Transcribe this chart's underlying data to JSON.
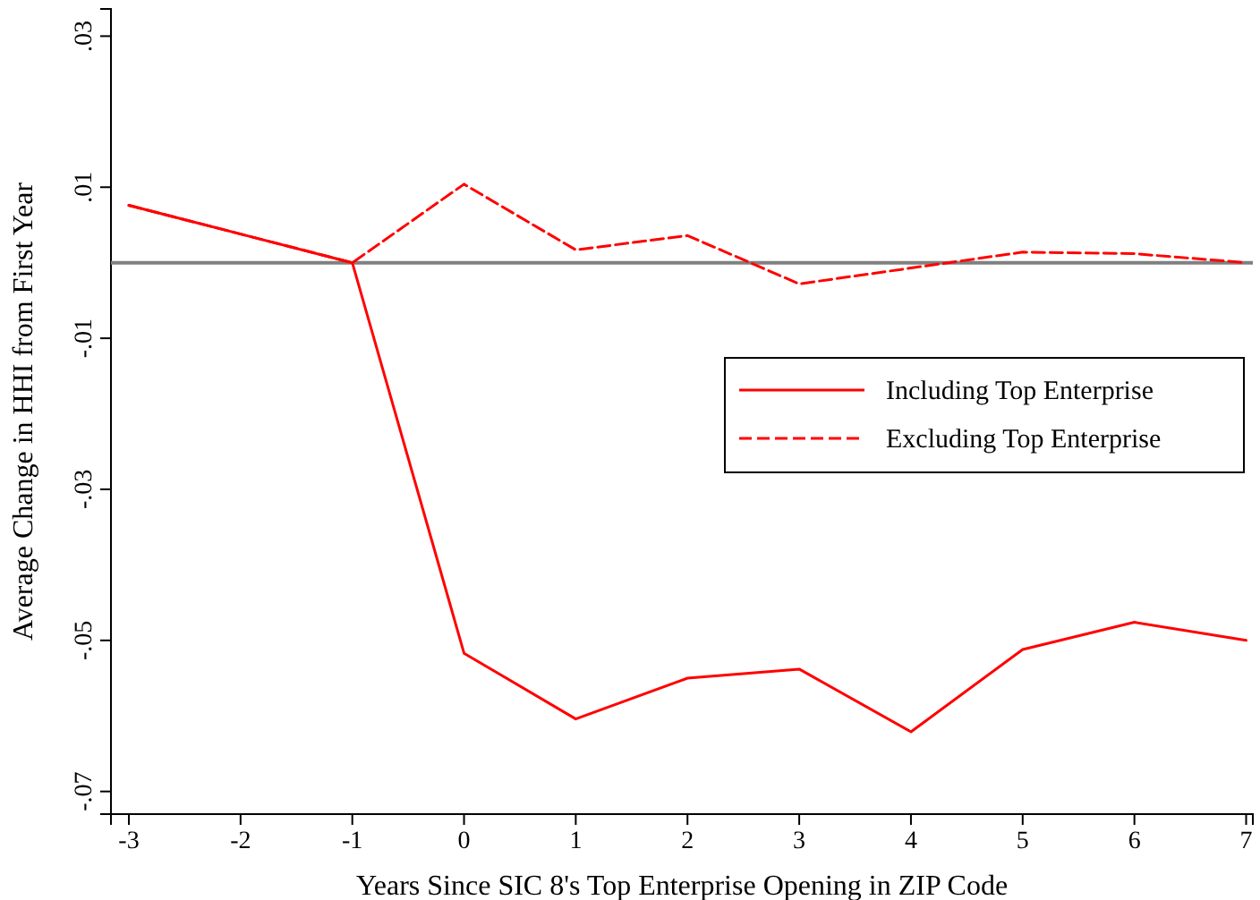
{
  "chart_data": {
    "type": "line",
    "xlabel": "Years Since SIC 8's Top Enterprise Opening in ZIP Code",
    "ylabel": "Average Change in HHI from First Year",
    "x": [
      -3,
      -2,
      -1,
      0,
      1,
      2,
      3,
      4,
      5,
      6,
      7
    ],
    "series": [
      {
        "name": "Including Top Enterprise",
        "color": "#ff0000",
        "line_style": "solid",
        "values": [
          0.0076,
          0.0038,
          0,
          -0.0517,
          -0.0604,
          -0.055,
          -0.0538,
          -0.0621,
          -0.0512,
          -0.0476,
          -0.05
        ]
      },
      {
        "name": "Excluding Top Enterprise",
        "color": "#ff0000",
        "line_style": "dashed",
        "values": [
          0.0076,
          0.0038,
          0,
          0.0104,
          0.0017,
          0.0036,
          -0.0028,
          -0.0007,
          0.0014,
          0.0012,
          0
        ]
      }
    ],
    "xlim": [
      -3.16,
      7.06
    ],
    "xticks": [
      -3,
      -2,
      -1,
      0,
      1,
      2,
      3,
      4,
      5,
      6,
      7
    ],
    "ylim": [
      -0.073,
      0.0336
    ],
    "yticks": [
      {
        "value": 0.03,
        "label": ".03"
      },
      {
        "value": 0.01,
        "label": ".01"
      },
      {
        "value": -0.01,
        "label": "-.01"
      },
      {
        "value": -0.03,
        "label": "-.03"
      },
      {
        "value": -0.05,
        "label": "-.05"
      },
      {
        "value": -0.07,
        "label": "-.07"
      }
    ],
    "ref_lines": [
      {
        "axis": "y",
        "value": 0,
        "color": "#808080"
      }
    ],
    "legend": "right",
    "marker": "none",
    "grid": false
  }
}
